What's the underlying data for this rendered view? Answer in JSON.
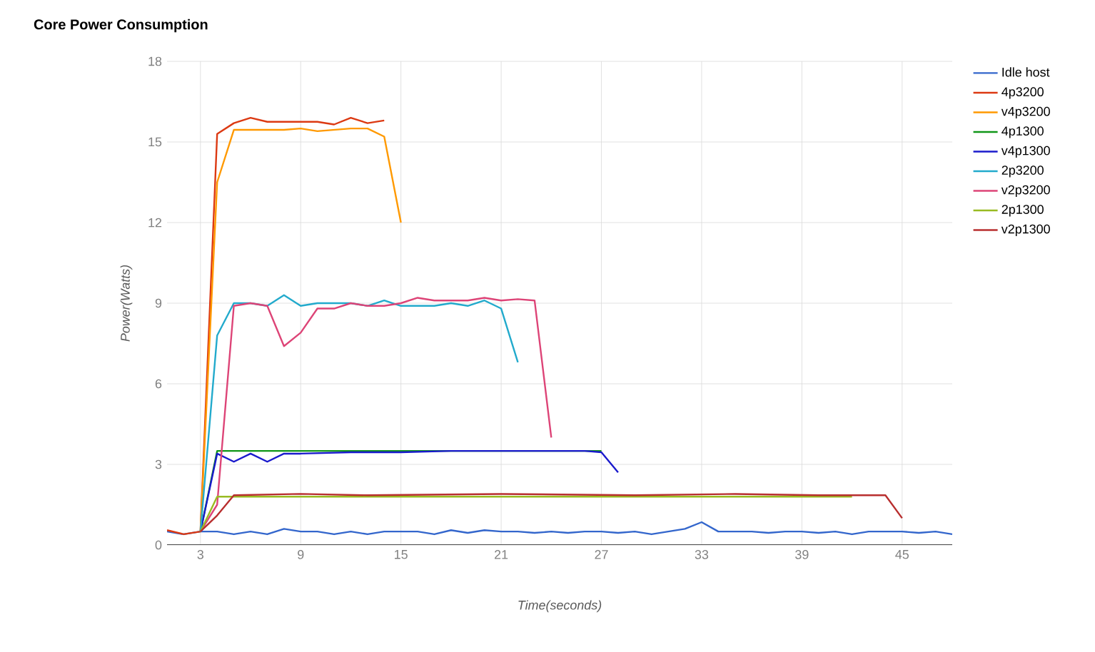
{
  "chart_data": {
    "type": "line",
    "title": "Core Power Consumption",
    "xlabel": "Time(seconds)",
    "ylabel": "Power(Watts)",
    "xlim": [
      1,
      48
    ],
    "ylim": [
      0,
      18
    ],
    "xticks": [
      3,
      9,
      15,
      21,
      27,
      33,
      39,
      45
    ],
    "yticks": [
      0,
      3,
      6,
      9,
      12,
      15,
      18
    ],
    "grid": true,
    "legend": "right",
    "line_style": "solid",
    "series": [
      {
        "name": "Idle host",
        "color": "#3366cc",
        "x": [
          1,
          2,
          3,
          4,
          5,
          6,
          7,
          8,
          9,
          10,
          11,
          12,
          13,
          14,
          15,
          16,
          17,
          18,
          19,
          20,
          21,
          22,
          23,
          24,
          25,
          26,
          27,
          28,
          29,
          30,
          31,
          32,
          33,
          34,
          35,
          36,
          37,
          38,
          39,
          40,
          41,
          42,
          43,
          44,
          45,
          46,
          47,
          48
        ],
        "values": [
          0.5,
          0.4,
          0.5,
          0.5,
          0.4,
          0.5,
          0.4,
          0.6,
          0.5,
          0.5,
          0.4,
          0.5,
          0.4,
          0.5,
          0.5,
          0.5,
          0.4,
          0.55,
          0.45,
          0.55,
          0.5,
          0.5,
          0.45,
          0.5,
          0.45,
          0.5,
          0.5,
          0.45,
          0.5,
          0.4,
          0.5,
          0.6,
          0.85,
          0.5,
          0.5,
          0.5,
          0.45,
          0.5,
          0.5,
          0.45,
          0.5,
          0.4,
          0.5,
          0.5,
          0.5,
          0.45,
          0.5,
          0.4
        ]
      },
      {
        "name": "4p3200",
        "color": "#dc3912",
        "x": [
          1,
          2,
          3,
          4,
          5,
          6,
          7,
          8,
          9,
          10,
          11,
          12,
          13,
          14
        ],
        "values": [
          0.55,
          0.4,
          0.5,
          15.3,
          15.7,
          15.9,
          15.75,
          15.75,
          15.75,
          15.75,
          15.65,
          15.9,
          15.7,
          15.8
        ]
      },
      {
        "name": "v4p3200",
        "color": "#ff9900",
        "x": [
          3,
          4,
          5,
          6,
          7,
          8,
          9,
          10,
          11,
          12,
          13,
          14,
          15
        ],
        "values": [
          0.5,
          13.5,
          15.45,
          15.45,
          15.45,
          15.45,
          15.5,
          15.4,
          15.45,
          15.5,
          15.5,
          15.2,
          12
        ]
      },
      {
        "name": "4p1300",
        "color": "#109618",
        "x": [
          3,
          4,
          5,
          27
        ],
        "values": [
          0.5,
          3.5,
          3.5,
          3.5
        ]
      },
      {
        "name": "v4p1300",
        "color": "#1a1acc",
        "x": [
          3,
          4,
          5,
          6,
          7,
          8,
          9,
          12,
          15,
          18,
          21,
          24,
          26,
          27,
          28
        ],
        "values": [
          0.5,
          3.4,
          3.1,
          3.4,
          3.1,
          3.4,
          3.4,
          3.45,
          3.45,
          3.5,
          3.5,
          3.5,
          3.5,
          3.45,
          2.7
        ]
      },
      {
        "name": "2p3200",
        "color": "#22aacc",
        "x": [
          3,
          4,
          5,
          6,
          7,
          8,
          9,
          10,
          11,
          12,
          13,
          14,
          15,
          16,
          17,
          18,
          19,
          20,
          21,
          22
        ],
        "values": [
          0.5,
          7.8,
          9,
          9,
          8.9,
          9.3,
          8.9,
          9,
          9,
          9,
          8.9,
          9.1,
          8.9,
          8.9,
          8.9,
          9,
          8.9,
          9.1,
          8.8,
          6.8
        ]
      },
      {
        "name": "v2p3200",
        "color": "#dd4477",
        "x": [
          3,
          4,
          5,
          6,
          7,
          8,
          9,
          10,
          11,
          12,
          13,
          14,
          15,
          16,
          17,
          18,
          19,
          20,
          21,
          22,
          23,
          24
        ],
        "values": [
          0.5,
          1.5,
          8.9,
          9,
          8.9,
          7.4,
          7.9,
          8.8,
          8.8,
          9,
          8.9,
          8.9,
          9,
          9.2,
          9.1,
          9.1,
          9.1,
          9.2,
          9.1,
          9.15,
          9.1,
          4
        ]
      },
      {
        "name": "2p1300",
        "color": "#99bb22",
        "x": [
          3,
          4,
          5,
          15,
          25,
          35,
          42
        ],
        "values": [
          0.5,
          1.8,
          1.8,
          1.8,
          1.8,
          1.8,
          1.8
        ]
      },
      {
        "name": "v2p1300",
        "color": "#b82e2e",
        "x": [
          3,
          4,
          5,
          9,
          13,
          21,
          29,
          35,
          40,
          44,
          45
        ],
        "values": [
          0.5,
          1.1,
          1.85,
          1.9,
          1.85,
          1.9,
          1.85,
          1.9,
          1.85,
          1.85,
          1.0
        ]
      }
    ]
  }
}
